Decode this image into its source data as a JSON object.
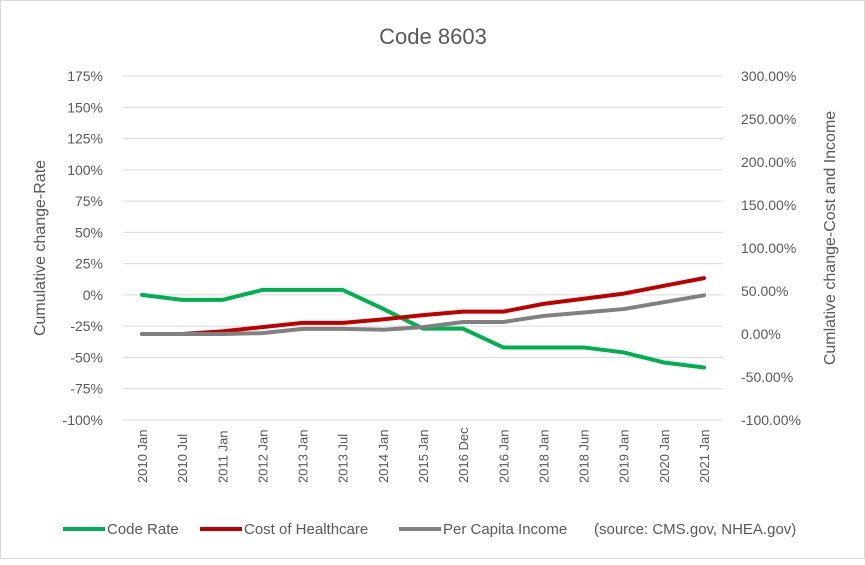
{
  "chart_data": {
    "type": "line",
    "title": "Code 8603",
    "ylabel": "Cumulative change-Rate",
    "y2label": "Cumlative change-Cost and Income",
    "ylim": [
      -100,
      175
    ],
    "y2lim": [
      -100,
      300
    ],
    "yticks": [
      "175%",
      "150%",
      "125%",
      "100%",
      "75%",
      "50%",
      "25%",
      "0%",
      "-25%",
      "-50%",
      "-75%",
      "-100%"
    ],
    "y2ticks": [
      "300.00%",
      "250.00%",
      "200.00%",
      "150.00%",
      "100.00%",
      "50.00%",
      "0.00%",
      "-50.00%",
      "-100.00%"
    ],
    "grid": true,
    "legend": "bottom",
    "categories": [
      "2010 Jan",
      "2010 Jul",
      "2011 Jan",
      "2012 Jan",
      "2013 Jan",
      "2013 Jul",
      "2014 Jan",
      "2015 Jan",
      "2016 Dec",
      "2016 Jan",
      "2018 Jan",
      "2018 Jun",
      "2019 Jan",
      "2020 Jan",
      "2021 Jan"
    ],
    "series": [
      {
        "name": "Code Rate",
        "axis": "left",
        "color": "#00b050",
        "values": [
          0,
          -4,
          -4,
          4,
          4,
          4,
          -11,
          -27,
          -27,
          -42,
          -42,
          -42,
          -46,
          -54,
          -58
        ]
      },
      {
        "name": "Cost of Healthcare",
        "axis": "right",
        "color": "#c00000",
        "values": [
          0,
          0,
          3,
          8,
          13,
          13,
          17,
          22,
          26,
          26,
          35,
          41,
          47,
          56,
          65
        ]
      },
      {
        "name": "Per Capita Income",
        "axis": "right",
        "color": "#808080",
        "values": [
          0,
          0,
          0,
          1,
          6,
          6,
          5,
          8,
          14,
          14,
          21,
          25,
          29,
          37,
          45
        ]
      }
    ],
    "annotation": "(source: CMS.gov, NHEA.gov)"
  }
}
